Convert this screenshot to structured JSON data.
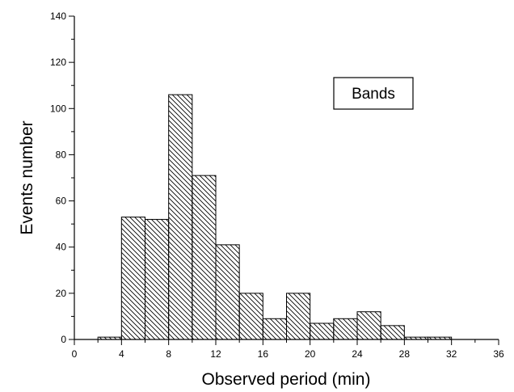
{
  "chart_data": {
    "type": "bar",
    "title": "",
    "xlabel": "Observed period (min)",
    "ylabel": "Events number",
    "xlim": [
      0,
      36
    ],
    "ylim": [
      0,
      140
    ],
    "x_ticks": [
      0,
      4,
      8,
      12,
      16,
      20,
      24,
      28,
      32,
      36
    ],
    "y_ticks": [
      0,
      20,
      40,
      60,
      80,
      100,
      120,
      140
    ],
    "bin_width": 2,
    "bins": [
      {
        "start": 2,
        "end": 4,
        "value": 1
      },
      {
        "start": 4,
        "end": 6,
        "value": 53
      },
      {
        "start": 6,
        "end": 8,
        "value": 52
      },
      {
        "start": 8,
        "end": 10,
        "value": 106
      },
      {
        "start": 10,
        "end": 12,
        "value": 71
      },
      {
        "start": 12,
        "end": 14,
        "value": 41
      },
      {
        "start": 14,
        "end": 16,
        "value": 20
      },
      {
        "start": 16,
        "end": 18,
        "value": 9
      },
      {
        "start": 18,
        "end": 20,
        "value": 20
      },
      {
        "start": 20,
        "end": 22,
        "value": 7
      },
      {
        "start": 22,
        "end": 24,
        "value": 9
      },
      {
        "start": 24,
        "end": 26,
        "value": 12
      },
      {
        "start": 26,
        "end": 28,
        "value": 6
      },
      {
        "start": 28,
        "end": 30,
        "value": 1
      },
      {
        "start": 30,
        "end": 32,
        "value": 1
      }
    ],
    "legend": {
      "label": "Bands",
      "placement": "top-right"
    },
    "fill_pattern": "diagonal-hatch",
    "grid": false
  }
}
